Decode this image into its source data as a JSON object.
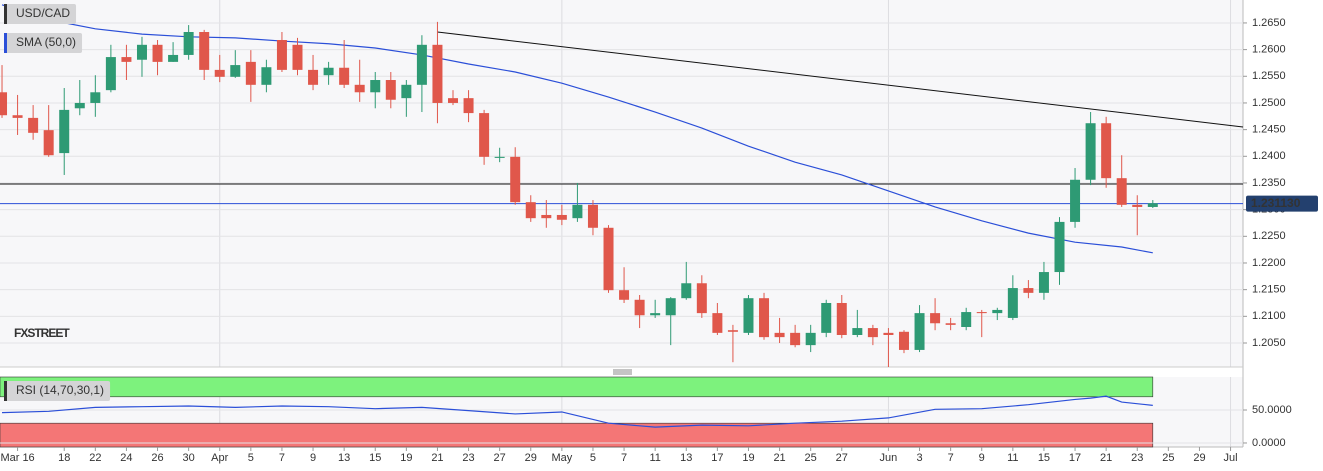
{
  "chart_data": [
    {
      "type": "candlestick",
      "title": "USD/CAD",
      "watermark": "FXSTREET",
      "up_color": "#2e9a74",
      "down_color": "#e0574b",
      "x": [
        0,
        1,
        2,
        3,
        4,
        5,
        6,
        7,
        8,
        9,
        10,
        11,
        12,
        13,
        14,
        15,
        16,
        17,
        18,
        19,
        20,
        21,
        22,
        23,
        24,
        25,
        26,
        27,
        28,
        29,
        30,
        31,
        32,
        33,
        34,
        35,
        36,
        37,
        38,
        39,
        40,
        41,
        42,
        43,
        44,
        45,
        46,
        47,
        48,
        49,
        50,
        51,
        52,
        53,
        54,
        55,
        56,
        57,
        58,
        59,
        60,
        61,
        62,
        63,
        64,
        65,
        66,
        67,
        68,
        69,
        70,
        71,
        72,
        73,
        74
      ],
      "open": [
        1.252,
        1.2477,
        1.2472,
        1.2449,
        1.2406,
        1.249,
        1.25,
        1.2524,
        1.2586,
        1.2581,
        1.2609,
        1.2577,
        1.259,
        1.2633,
        1.2562,
        1.2549,
        1.2577,
        1.2534,
        1.2618,
        1.2609,
        1.2562,
        1.2552,
        1.2566,
        1.2534,
        1.252,
        1.2543,
        1.2509,
        1.2534,
        1.2609,
        1.2509,
        1.2509,
        1.2481,
        1.2397,
        1.2399,
        1.2314,
        1.229,
        1.229,
        1.2284,
        1.2309,
        1.2266,
        1.2149,
        1.2131,
        1.2102,
        1.2102,
        1.2134,
        1.2162,
        1.2106,
        1.2074,
        1.2069,
        1.2134,
        1.2069,
        1.2069,
        1.2046,
        1.2069,
        1.2125,
        1.2065,
        1.2078,
        1.2069,
        1.2071,
        1.2037,
        1.2106,
        1.2087,
        1.208,
        1.2108,
        1.2106,
        1.2097,
        1.2153,
        1.2144,
        1.2183,
        1.2277,
        1.2356,
        1.2462,
        1.2359,
        1.2309,
        1.2305
      ],
      "high": [
        1.2571,
        1.2515,
        1.2496,
        1.2496,
        1.2528,
        1.2543,
        1.2552,
        1.2609,
        1.2609,
        1.2624,
        1.2618,
        1.2614,
        1.2646,
        1.2637,
        1.259,
        1.2599,
        1.2599,
        1.2581,
        1.2633,
        1.2622,
        1.259,
        1.2577,
        1.2618,
        1.2581,
        1.2558,
        1.2558,
        1.2543,
        1.2627,
        1.2652,
        1.2524,
        1.2524,
        1.2487,
        1.2416,
        1.2417,
        1.2327,
        1.2318,
        1.2309,
        1.235,
        1.2318,
        1.2271,
        1.2192,
        1.214,
        1.2131,
        1.2136,
        1.2202,
        1.2177,
        1.2125,
        1.2084,
        1.214,
        1.2144,
        1.2097,
        1.2084,
        1.2084,
        1.2131,
        1.214,
        1.2112,
        1.2084,
        1.2078,
        1.2074,
        1.2121,
        1.2134,
        1.2097,
        1.2116,
        1.2112,
        1.2116,
        1.2177,
        1.2168,
        1.2202,
        1.2286,
        1.2378,
        1.2483,
        1.2474,
        1.2402,
        1.2327,
        1.2318
      ],
      "low": [
        1.2472,
        1.244,
        1.2431,
        1.2399,
        1.2365,
        1.2477,
        1.2474,
        1.252,
        1.2543,
        1.2549,
        1.2552,
        1.2577,
        1.2581,
        1.2543,
        1.2539,
        1.2547,
        1.2502,
        1.252,
        1.2558,
        1.2552,
        1.2524,
        1.2534,
        1.2528,
        1.2502,
        1.249,
        1.249,
        1.2474,
        1.2483,
        1.2462,
        1.2496,
        1.2464,
        1.2384,
        1.2389,
        1.2309,
        1.2277,
        1.2266,
        1.2271,
        1.2277,
        1.2252,
        1.2144,
        1.2125,
        1.2078,
        1.2097,
        1.2046,
        1.2131,
        1.2097,
        1.2065,
        1.2014,
        1.2065,
        1.2056,
        1.205,
        1.2042,
        1.2033,
        1.2061,
        1.2059,
        1.2061,
        1.2046,
        1.2005,
        1.2031,
        1.2033,
        1.2074,
        1.2074,
        1.2074,
        1.2061,
        1.2093,
        1.2093,
        1.2134,
        1.2131,
        1.2159,
        1.2266,
        1.2346,
        1.2341,
        1.2305,
        1.2252,
        1.2303
      ],
      "close": [
        1.2477,
        1.2472,
        1.2444,
        1.2402,
        1.2487,
        1.25,
        1.252,
        1.2586,
        1.2577,
        1.2609,
        1.2577,
        1.259,
        1.2633,
        1.2562,
        1.2549,
        1.2571,
        1.2534,
        1.2567,
        1.2562,
        1.2562,
        1.2534,
        1.2566,
        1.2534,
        1.252,
        1.2543,
        1.2506,
        1.2534,
        1.2609,
        1.25,
        1.25,
        1.2481,
        1.2399,
        1.2399,
        1.2314,
        1.2284,
        1.2284,
        1.2281,
        1.2309,
        1.2266,
        1.2149,
        1.2131,
        1.2102,
        1.2106,
        1.2134,
        1.2162,
        1.2106,
        1.2069,
        1.2071,
        1.2134,
        1.2061,
        1.2061,
        1.2046,
        1.2069,
        1.2125,
        1.2065,
        1.2078,
        1.2061,
        1.2065,
        1.2037,
        1.2106,
        1.2087,
        1.2084,
        1.2108,
        1.2106,
        1.2112,
        1.2153,
        1.2144,
        1.2183,
        1.2277,
        1.2356,
        1.2462,
        1.2359,
        1.2309,
        1.2305,
        1.2312
      ],
      "series": [
        {
          "name": "SMA (50,0)",
          "color": "#2b4fd8",
          "x": [
            0,
            3,
            6,
            9,
            12,
            15,
            18,
            21,
            24,
            27,
            30,
            33,
            36,
            39,
            42,
            45,
            48,
            51,
            54,
            57,
            60,
            63,
            66,
            69,
            72,
            74
          ],
          "values": [
            1.2684,
            1.2656,
            1.2639,
            1.2629,
            1.2624,
            1.2622,
            1.2616,
            1.2611,
            1.2603,
            1.259,
            1.2573,
            1.2558,
            1.2537,
            1.2511,
            1.2483,
            1.2453,
            1.2419,
            1.2389,
            1.2365,
            1.2335,
            1.2305,
            1.2279,
            1.2256,
            1.2239,
            1.223,
            1.2219
          ]
        }
      ],
      "trend_line": {
        "x": [
          28,
          79.8
        ],
        "values": [
          1.2633,
          1.2455
        ],
        "color": "#111111"
      },
      "level_line": {
        "value": 1.2348,
        "color": "#111111"
      },
      "last_price": {
        "value": 1.23113,
        "label": "1.231130",
        "color": "#2b4fd8",
        "label_color": "#23406e"
      },
      "xlim": [
        -0.13,
        79.8
      ],
      "ylim": [
        1.2005,
        1.2693
      ],
      "yticks": [
        {
          "value": 1.205,
          "label": "1.2050"
        },
        {
          "value": 1.21,
          "label": "1.2100"
        },
        {
          "value": 1.215,
          "label": "1.2150"
        },
        {
          "value": 1.22,
          "label": "1.2200"
        },
        {
          "value": 1.225,
          "label": "1.2250"
        },
        {
          "value": 1.23,
          "label": "1.2300"
        },
        {
          "value": 1.235,
          "label": "1.2350"
        },
        {
          "value": 1.24,
          "label": "1.2400"
        },
        {
          "value": 1.245,
          "label": "1.2450"
        },
        {
          "value": 1.25,
          "label": "1.2500"
        },
        {
          "value": 1.255,
          "label": "1.2550"
        },
        {
          "value": 1.26,
          "label": "1.2600"
        },
        {
          "value": 1.265,
          "label": "1.2650"
        }
      ],
      "grid": true
    },
    {
      "type": "line",
      "series": [
        {
          "name": "RSI (14,70,30,1)",
          "color": "#2b4fd8",
          "x": [
            0,
            3,
            6,
            9,
            12,
            15,
            18,
            21,
            24,
            27,
            30,
            33,
            36,
            39,
            42,
            45,
            48,
            51,
            54,
            57,
            60,
            63,
            66,
            69,
            70,
            71,
            72,
            74
          ],
          "values": [
            46,
            48,
            54,
            55,
            56,
            54,
            56,
            55,
            52,
            54,
            49,
            44,
            47,
            30,
            24,
            27,
            26,
            30,
            33,
            38,
            51,
            52,
            58,
            66,
            68,
            71,
            62,
            57
          ]
        }
      ],
      "bands": {
        "upper": 70,
        "lower": 30,
        "upper_color": "#7df27d",
        "lower_color": "#f47676"
      },
      "xlim": [
        -0.13,
        79.8
      ],
      "ylim": [
        -6.1,
        100
      ],
      "yticks": [
        {
          "value": 50,
          "label": "50.0000"
        },
        {
          "value": 0,
          "label": "0.0000"
        }
      ],
      "xticks": [
        {
          "value": 1,
          "label": "Mar 16"
        },
        {
          "value": 4,
          "label": "18"
        },
        {
          "value": 6,
          "label": "22"
        },
        {
          "value": 8,
          "label": "24"
        },
        {
          "value": 10,
          "label": "26"
        },
        {
          "value": 12,
          "label": "30"
        },
        {
          "value": 14,
          "label": "Apr"
        },
        {
          "value": 16,
          "label": "5"
        },
        {
          "value": 18,
          "label": "7"
        },
        {
          "value": 20,
          "label": "9"
        },
        {
          "value": 22,
          "label": "13"
        },
        {
          "value": 24,
          "label": "15"
        },
        {
          "value": 26,
          "label": "19"
        },
        {
          "value": 28,
          "label": "21"
        },
        {
          "value": 30,
          "label": "23"
        },
        {
          "value": 32,
          "label": "27"
        },
        {
          "value": 34,
          "label": "29"
        },
        {
          "value": 36,
          "label": "May"
        },
        {
          "value": 38,
          "label": "5"
        },
        {
          "value": 40,
          "label": "7"
        },
        {
          "value": 42,
          "label": "11"
        },
        {
          "value": 44,
          "label": "13"
        },
        {
          "value": 46,
          "label": "17"
        },
        {
          "value": 48,
          "label": "19"
        },
        {
          "value": 50,
          "label": "21"
        },
        {
          "value": 52,
          "label": "25"
        },
        {
          "value": 54,
          "label": "27"
        },
        {
          "value": 57,
          "label": "Jun"
        },
        {
          "value": 59,
          "label": "3"
        },
        {
          "value": 61,
          "label": "7"
        },
        {
          "value": 63,
          "label": "9"
        },
        {
          "value": 65,
          "label": "11"
        },
        {
          "value": 67,
          "label": "15"
        },
        {
          "value": 69,
          "label": "17"
        },
        {
          "value": 71,
          "label": "21"
        },
        {
          "value": 73,
          "label": "23"
        },
        {
          "value": 75,
          "label": "25"
        },
        {
          "value": 77,
          "label": "29"
        },
        {
          "value": 79,
          "label": "Jul"
        }
      ],
      "grid": true
    }
  ]
}
